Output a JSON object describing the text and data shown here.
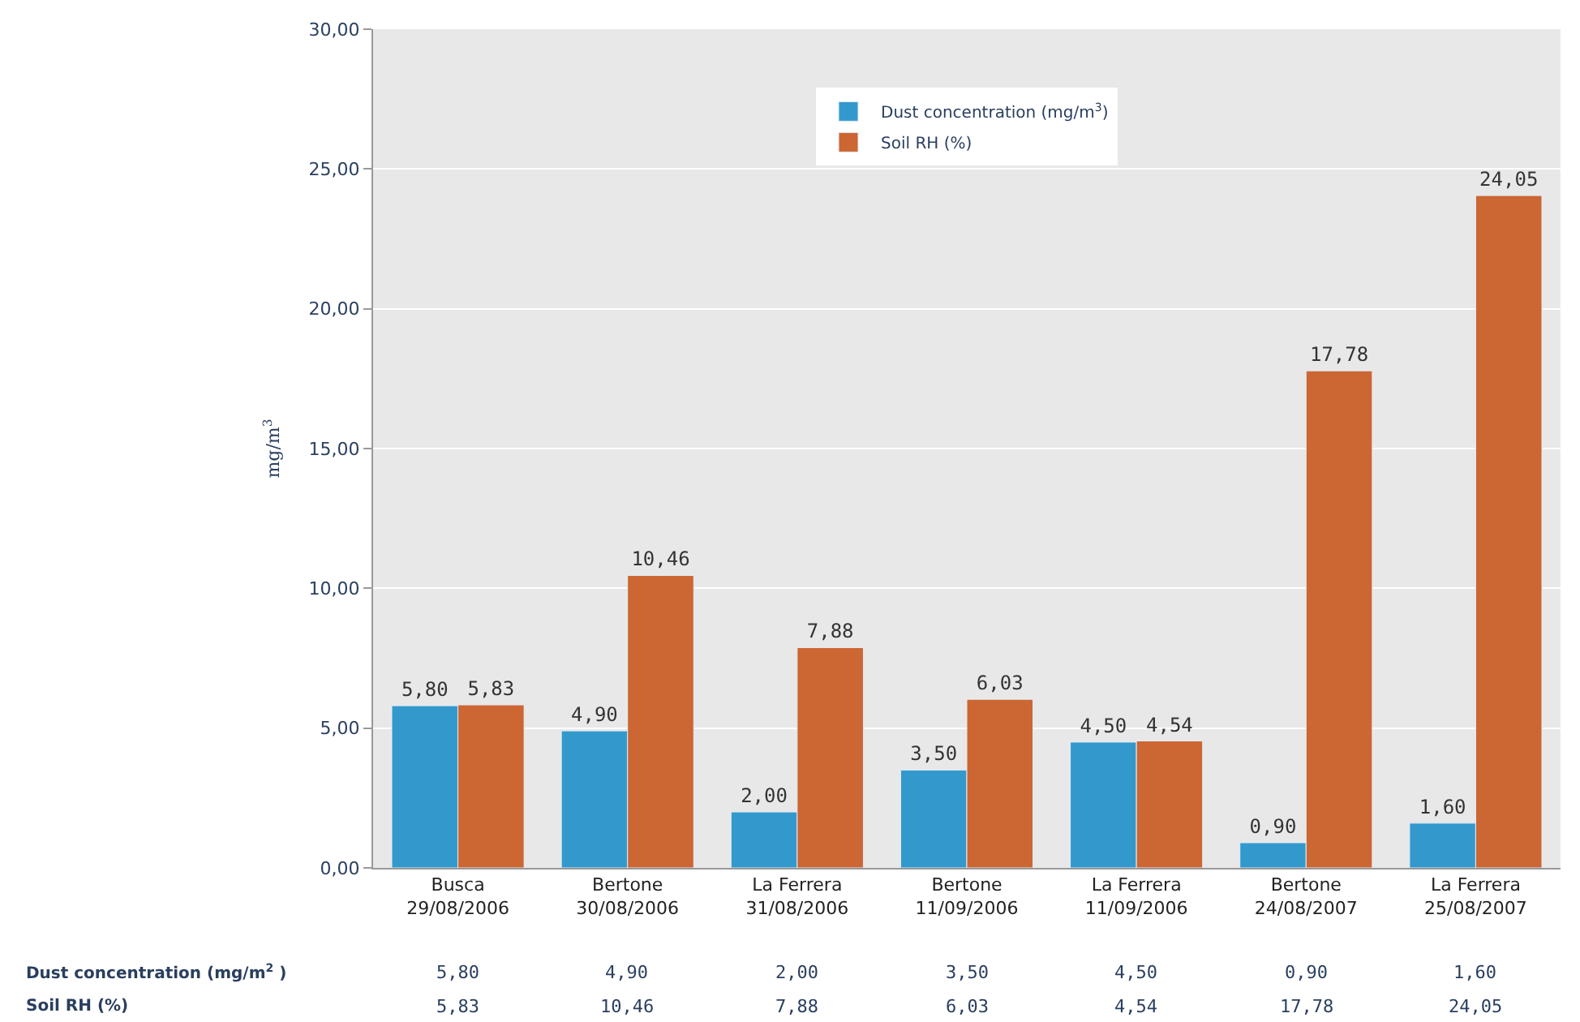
{
  "chart_data": {
    "type": "bar",
    "ylabel": "mg/m$^{3}$",
    "categories": [
      "Busca\n29/08/2006",
      "Bertone\n30/08/2006",
      "La Ferrera\n31/08/2006",
      "Bertone\n11/09/2006",
      "La Ferrera\n11/09/2006",
      "Bertone\n24/08/2007",
      "La Ferrera\n25/08/2007"
    ],
    "series": [
      {
        "name": "Dust concentration (mg/m$^{3}$)",
        "color": "#3399cc",
        "values": [
          5.8,
          4.9,
          2.0,
          3.5,
          4.5,
          0.9,
          1.6
        ],
        "value_labels": [
          "5,80",
          "4,90",
          "2,00",
          "3,50",
          "4,50",
          "0,90",
          "1,60"
        ]
      },
      {
        "name": "Soil RH (%)",
        "color": "#cc6633",
        "values": [
          5.83,
          10.46,
          7.88,
          6.03,
          4.54,
          17.78,
          24.05
        ],
        "value_labels": [
          "5,83",
          "10,46",
          "7,88",
          "6,03",
          "4,54",
          "17,78",
          "24,05"
        ]
      }
    ],
    "ylim": [
      0,
      30
    ],
    "yticks": [
      {
        "value": 0,
        "label": "0,00"
      },
      {
        "value": 5,
        "label": "5,00"
      },
      {
        "value": 10,
        "label": "10,00"
      },
      {
        "value": 15,
        "label": "15,00"
      },
      {
        "value": 20,
        "label": "20,00"
      },
      {
        "value": 25,
        "label": "25,00"
      },
      {
        "value": 30,
        "label": "30,00"
      }
    ],
    "annotations": [
      "Dust concentration (mg/m$^{2}$ )",
      "Soil RH (%)"
    ],
    "grid": "y",
    "legend": "top"
  }
}
